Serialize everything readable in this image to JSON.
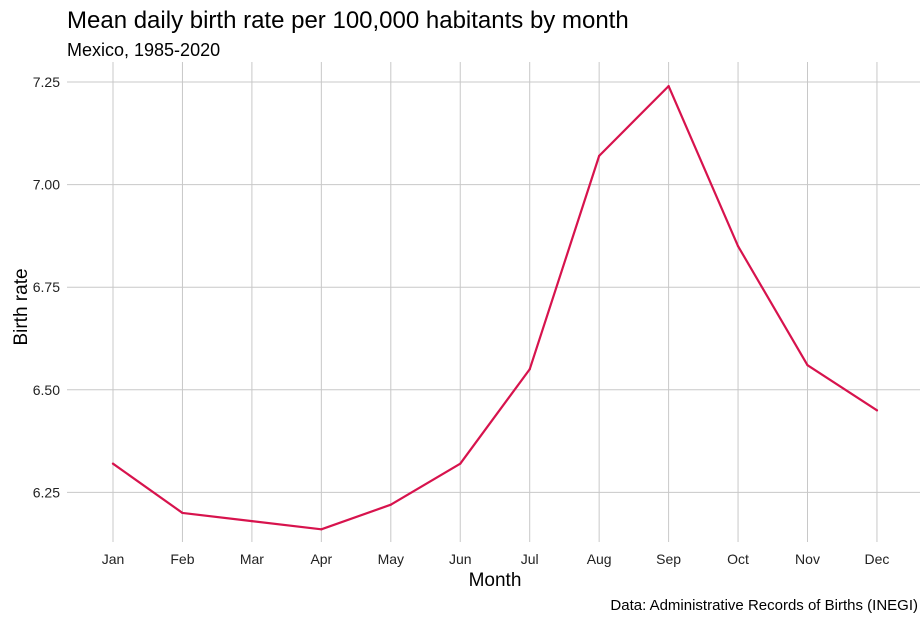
{
  "chart_data": {
    "type": "line",
    "title": "Mean daily birth rate per 100,000 habitants by month",
    "subtitle": "Mexico, 1985-2020",
    "xlabel": "Month",
    "ylabel": "Birth rate",
    "caption": "Data: Administrative Records of Births (INEGI)",
    "categories": [
      "Jan",
      "Feb",
      "Mar",
      "Apr",
      "May",
      "Jun",
      "Jul",
      "Aug",
      "Sep",
      "Oct",
      "Nov",
      "Dec"
    ],
    "series": [
      {
        "values": [
          6.32,
          6.2,
          6.18,
          6.16,
          6.22,
          6.32,
          6.55,
          7.07,
          7.24,
          6.85,
          6.56,
          6.45
        ],
        "color": "#d7134d"
      }
    ],
    "yticks": [
      6.25,
      6.5,
      6.75,
      7.0,
      7.25
    ],
    "ytick_labels": [
      "6.25",
      "6.50",
      "6.75",
      "7.00",
      "7.25"
    ],
    "ylim": [
      6.12,
      7.29
    ],
    "grid": true,
    "legend": "none"
  }
}
